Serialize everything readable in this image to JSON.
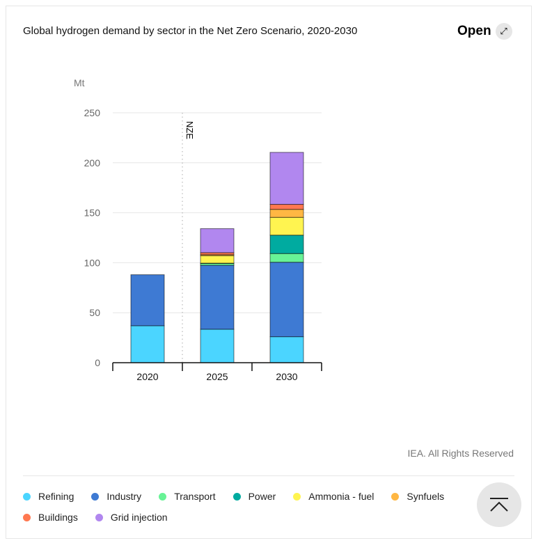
{
  "header": {
    "title": "Global hydrogen demand by sector in the Net Zero Scenario, 2020-2030",
    "open_label": "Open",
    "open_icon": "expand-arrows-icon"
  },
  "credit": "IEA. All Rights Reserved",
  "scroll_top_icon": "chevron-up-icon",
  "chart_data": {
    "type": "bar",
    "stacked": true,
    "ylabel": "Mt",
    "ylim": [
      0,
      250
    ],
    "yticks": [
      0,
      50,
      100,
      150,
      200,
      250
    ],
    "grid": true,
    "categories": [
      "2020",
      "2025",
      "2030"
    ],
    "annotation": {
      "label": "NZE",
      "between": [
        "2020",
        "2025"
      ],
      "style": "dotted-vertical-line"
    },
    "legend_position": "bottom",
    "series": [
      {
        "name": "Refining",
        "color": "#4bd5ff",
        "values": [
          37,
          33.5,
          26
        ]
      },
      {
        "name": "Industry",
        "color": "#3e7ad3",
        "values": [
          51,
          64,
          74.5
        ]
      },
      {
        "name": "Transport",
        "color": "#68f396",
        "values": [
          0,
          1.8,
          8.7
        ]
      },
      {
        "name": "Power",
        "color": "#00aba0",
        "values": [
          0,
          0.3,
          18.4
        ]
      },
      {
        "name": "Ammonia - fuel",
        "color": "#fff450",
        "values": [
          0,
          7.5,
          17.8
        ]
      },
      {
        "name": "Synfuels",
        "color": "#ffb743",
        "values": [
          0,
          1,
          8
        ]
      },
      {
        "name": "Buildings",
        "color": "#ff7850",
        "values": [
          0,
          2,
          5
        ]
      },
      {
        "name": "Grid injection",
        "color": "#b187ef",
        "values": [
          0,
          24,
          52
        ]
      }
    ]
  }
}
